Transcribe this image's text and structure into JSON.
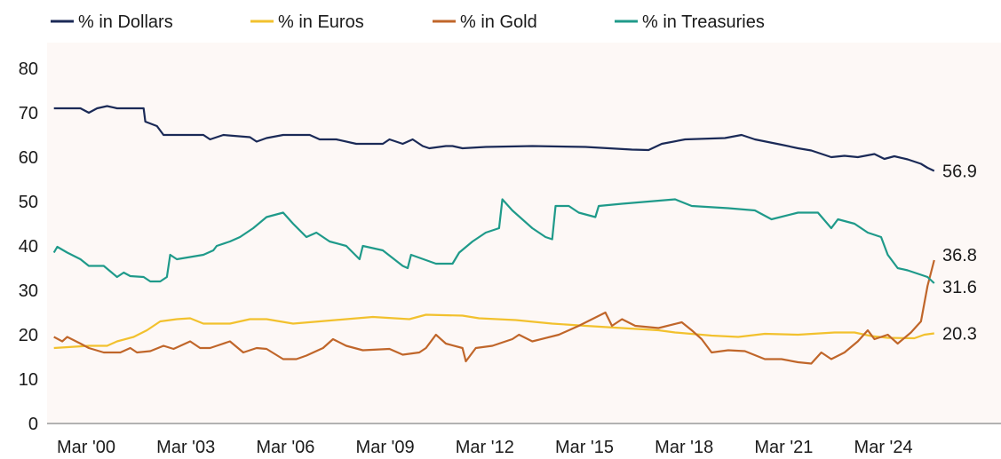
{
  "chart_data": {
    "type": "line",
    "title": "",
    "xlabel": "",
    "ylabel": "",
    "ylim": [
      0,
      80
    ],
    "yticks": [
      "0",
      "10",
      "20",
      "30",
      "40",
      "50",
      "60",
      "70",
      "80"
    ],
    "xticks": [
      {
        "label": "Mar '00",
        "x": 2000.17
      },
      {
        "label": "Mar '03",
        "x": 2003.17
      },
      {
        "label": "Mar '06",
        "x": 2006.17
      },
      {
        "label": "Mar '09",
        "x": 2009.17
      },
      {
        "label": "Mar '12",
        "x": 2012.17
      },
      {
        "label": "Mar '15",
        "x": 2015.17
      },
      {
        "label": "Mar '18",
        "x": 2018.17
      },
      {
        "label": "Mar '21",
        "x": 2021.17
      },
      {
        "label": "Mar '24",
        "x": 2024.17
      }
    ],
    "grid": false,
    "legend_position": "top",
    "series": [
      {
        "name": "% in Dollars",
        "color": "#1b2a57",
        "end_label": "56.9",
        "points": [
          [
            1999.2,
            71
          ],
          [
            2000.0,
            71
          ],
          [
            2000.25,
            70
          ],
          [
            2000.5,
            71
          ],
          [
            2000.8,
            71.5
          ],
          [
            2001.1,
            71
          ],
          [
            2001.9,
            71
          ],
          [
            2001.95,
            68
          ],
          [
            2002.3,
            67
          ],
          [
            2002.5,
            65
          ],
          [
            2003.7,
            65
          ],
          [
            2003.9,
            64
          ],
          [
            2004.3,
            65
          ],
          [
            2005.1,
            64.5
          ],
          [
            2005.3,
            63.5
          ],
          [
            2005.6,
            64.3
          ],
          [
            2006.1,
            65
          ],
          [
            2006.9,
            65
          ],
          [
            2007.2,
            64
          ],
          [
            2007.7,
            64
          ],
          [
            2008.3,
            63
          ],
          [
            2009.1,
            63
          ],
          [
            2009.3,
            64
          ],
          [
            2009.7,
            63
          ],
          [
            2010.0,
            64
          ],
          [
            2010.3,
            62.5
          ],
          [
            2010.5,
            62
          ],
          [
            2011.0,
            62.5
          ],
          [
            2011.2,
            62.5
          ],
          [
            2011.5,
            62
          ],
          [
            2012.2,
            62.3
          ],
          [
            2013.6,
            62.5
          ],
          [
            2015.2,
            62.3
          ],
          [
            2016.6,
            61.7
          ],
          [
            2017.1,
            61.6
          ],
          [
            2017.5,
            63
          ],
          [
            2018.2,
            64
          ],
          [
            2019.4,
            64.3
          ],
          [
            2019.9,
            65
          ],
          [
            2020.3,
            64
          ],
          [
            2021.1,
            62.8
          ],
          [
            2021.6,
            62
          ],
          [
            2022.0,
            61.5
          ],
          [
            2022.6,
            60
          ],
          [
            2023.0,
            60.3
          ],
          [
            2023.4,
            60
          ],
          [
            2023.9,
            60.7
          ],
          [
            2024.2,
            59.6
          ],
          [
            2024.5,
            60.2
          ],
          [
            2024.9,
            59.5
          ],
          [
            2025.3,
            58.5
          ],
          [
            2025.5,
            57.6
          ],
          [
            2025.7,
            56.9
          ]
        ]
      },
      {
        "name": "% in Euros",
        "color": "#f2c12e",
        "end_label": "20.3",
        "points": [
          [
            1999.2,
            17
          ],
          [
            2000.25,
            17.5
          ],
          [
            2000.8,
            17.5
          ],
          [
            2001.1,
            18.5
          ],
          [
            2001.6,
            19.5
          ],
          [
            2002.0,
            21
          ],
          [
            2002.4,
            23
          ],
          [
            2002.9,
            23.5
          ],
          [
            2003.3,
            23.7
          ],
          [
            2003.7,
            22.5
          ],
          [
            2004.5,
            22.5
          ],
          [
            2005.1,
            23.5
          ],
          [
            2005.6,
            23.5
          ],
          [
            2006.4,
            22.5
          ],
          [
            2007.2,
            23
          ],
          [
            2008.0,
            23.5
          ],
          [
            2008.8,
            24
          ],
          [
            2009.9,
            23.5
          ],
          [
            2010.4,
            24.5
          ],
          [
            2011.5,
            24.3
          ],
          [
            2012.0,
            23.7
          ],
          [
            2013.1,
            23.3
          ],
          [
            2014.2,
            22.5
          ],
          [
            2015.2,
            22
          ],
          [
            2016.3,
            21.5
          ],
          [
            2017.4,
            21
          ],
          [
            2017.9,
            20.5
          ],
          [
            2019.0,
            19.8
          ],
          [
            2019.8,
            19.5
          ],
          [
            2020.6,
            20.2
          ],
          [
            2021.6,
            20
          ],
          [
            2022.7,
            20.5
          ],
          [
            2023.3,
            20.5
          ],
          [
            2023.8,
            19.7
          ],
          [
            2024.3,
            19.3
          ],
          [
            2025.1,
            19.2
          ],
          [
            2025.4,
            20
          ],
          [
            2025.7,
            20.3
          ]
        ]
      },
      {
        "name": "% in Gold",
        "color": "#c0662a",
        "end_label": "36.8",
        "points": [
          [
            1999.2,
            19.5
          ],
          [
            1999.45,
            18.5
          ],
          [
            1999.6,
            19.5
          ],
          [
            2000.0,
            18
          ],
          [
            2000.25,
            17
          ],
          [
            2000.7,
            16
          ],
          [
            2001.2,
            16
          ],
          [
            2001.5,
            17
          ],
          [
            2001.7,
            16
          ],
          [
            2002.1,
            16.3
          ],
          [
            2002.5,
            17.5
          ],
          [
            2002.8,
            16.8
          ],
          [
            2003.3,
            18.5
          ],
          [
            2003.6,
            17
          ],
          [
            2003.9,
            17
          ],
          [
            2004.1,
            17.5
          ],
          [
            2004.5,
            18.5
          ],
          [
            2004.9,
            16
          ],
          [
            2005.3,
            17
          ],
          [
            2005.6,
            16.8
          ],
          [
            2006.1,
            14.5
          ],
          [
            2006.5,
            14.5
          ],
          [
            2006.8,
            15.3
          ],
          [
            2007.3,
            17
          ],
          [
            2007.6,
            19
          ],
          [
            2008.0,
            17.5
          ],
          [
            2008.5,
            16.5
          ],
          [
            2009.3,
            16.8
          ],
          [
            2009.7,
            15.5
          ],
          [
            2010.2,
            16
          ],
          [
            2010.4,
            17
          ],
          [
            2010.7,
            20
          ],
          [
            2011.0,
            18
          ],
          [
            2011.5,
            17
          ],
          [
            2011.6,
            14
          ],
          [
            2011.9,
            17
          ],
          [
            2012.4,
            17.5
          ],
          [
            2013.0,
            19
          ],
          [
            2013.2,
            20
          ],
          [
            2013.6,
            18.5
          ],
          [
            2014.4,
            20
          ],
          [
            2015.0,
            22
          ],
          [
            2015.8,
            25
          ],
          [
            2016.0,
            22
          ],
          [
            2016.3,
            23.5
          ],
          [
            2016.7,
            22
          ],
          [
            2017.4,
            21.5
          ],
          [
            2018.1,
            22.8
          ],
          [
            2018.4,
            21
          ],
          [
            2018.7,
            19
          ],
          [
            2019.0,
            16
          ],
          [
            2019.5,
            16.5
          ],
          [
            2020.0,
            16.3
          ],
          [
            2020.6,
            14.5
          ],
          [
            2021.1,
            14.5
          ],
          [
            2021.6,
            13.8
          ],
          [
            2022.0,
            13.5
          ],
          [
            2022.3,
            16
          ],
          [
            2022.6,
            14.5
          ],
          [
            2023.0,
            16
          ],
          [
            2023.4,
            18.5
          ],
          [
            2023.7,
            21
          ],
          [
            2023.9,
            19
          ],
          [
            2024.3,
            20
          ],
          [
            2024.6,
            18
          ],
          [
            2025.0,
            20.5
          ],
          [
            2025.3,
            23
          ],
          [
            2025.4,
            27
          ],
          [
            2025.5,
            31
          ],
          [
            2025.7,
            36.8
          ]
        ]
      },
      {
        "name": "% in Treasuries",
        "color": "#1f9a8a",
        "end_label": "31.6",
        "points": [
          [
            1999.2,
            38.5
          ],
          [
            1999.3,
            39.8
          ],
          [
            1999.6,
            38.5
          ],
          [
            2000.0,
            37
          ],
          [
            2000.25,
            35.5
          ],
          [
            2000.7,
            35.5
          ],
          [
            2001.1,
            33
          ],
          [
            2001.3,
            34
          ],
          [
            2001.5,
            33.2
          ],
          [
            2001.9,
            33
          ],
          [
            2002.1,
            32
          ],
          [
            2002.4,
            32
          ],
          [
            2002.6,
            33
          ],
          [
            2002.7,
            38
          ],
          [
            2002.9,
            37
          ],
          [
            2003.7,
            38
          ],
          [
            2004.0,
            39
          ],
          [
            2004.1,
            40
          ],
          [
            2004.5,
            41
          ],
          [
            2004.8,
            42
          ],
          [
            2005.2,
            44
          ],
          [
            2005.6,
            46.5
          ],
          [
            2006.1,
            47.5
          ],
          [
            2006.4,
            45
          ],
          [
            2006.8,
            42
          ],
          [
            2007.1,
            43
          ],
          [
            2007.5,
            41
          ],
          [
            2008.0,
            40
          ],
          [
            2008.4,
            37
          ],
          [
            2008.5,
            40
          ],
          [
            2009.1,
            39
          ],
          [
            2009.7,
            35.5
          ],
          [
            2009.85,
            35
          ],
          [
            2009.95,
            38
          ],
          [
            2010.7,
            36
          ],
          [
            2011.2,
            36
          ],
          [
            2011.4,
            38.5
          ],
          [
            2011.8,
            41
          ],
          [
            2012.2,
            43
          ],
          [
            2012.6,
            44
          ],
          [
            2012.7,
            50.5
          ],
          [
            2013.0,
            48
          ],
          [
            2013.6,
            44
          ],
          [
            2014.0,
            42
          ],
          [
            2014.2,
            41.5
          ],
          [
            2014.3,
            49
          ],
          [
            2014.7,
            49
          ],
          [
            2015.0,
            47.5
          ],
          [
            2015.5,
            46.5
          ],
          [
            2015.6,
            49
          ],
          [
            2016.3,
            49.5
          ],
          [
            2017.1,
            50
          ],
          [
            2017.9,
            50.5
          ],
          [
            2018.4,
            49
          ],
          [
            2019.5,
            48.5
          ],
          [
            2020.3,
            48
          ],
          [
            2020.8,
            46
          ],
          [
            2021.6,
            47.5
          ],
          [
            2022.2,
            47.5
          ],
          [
            2022.6,
            44
          ],
          [
            2022.8,
            46
          ],
          [
            2023.3,
            45
          ],
          [
            2023.7,
            43
          ],
          [
            2024.1,
            42
          ],
          [
            2024.3,
            38
          ],
          [
            2024.6,
            35
          ],
          [
            2024.9,
            34.5
          ],
          [
            2025.3,
            33.5
          ],
          [
            2025.5,
            33
          ],
          [
            2025.7,
            31.6
          ]
        ]
      }
    ]
  }
}
